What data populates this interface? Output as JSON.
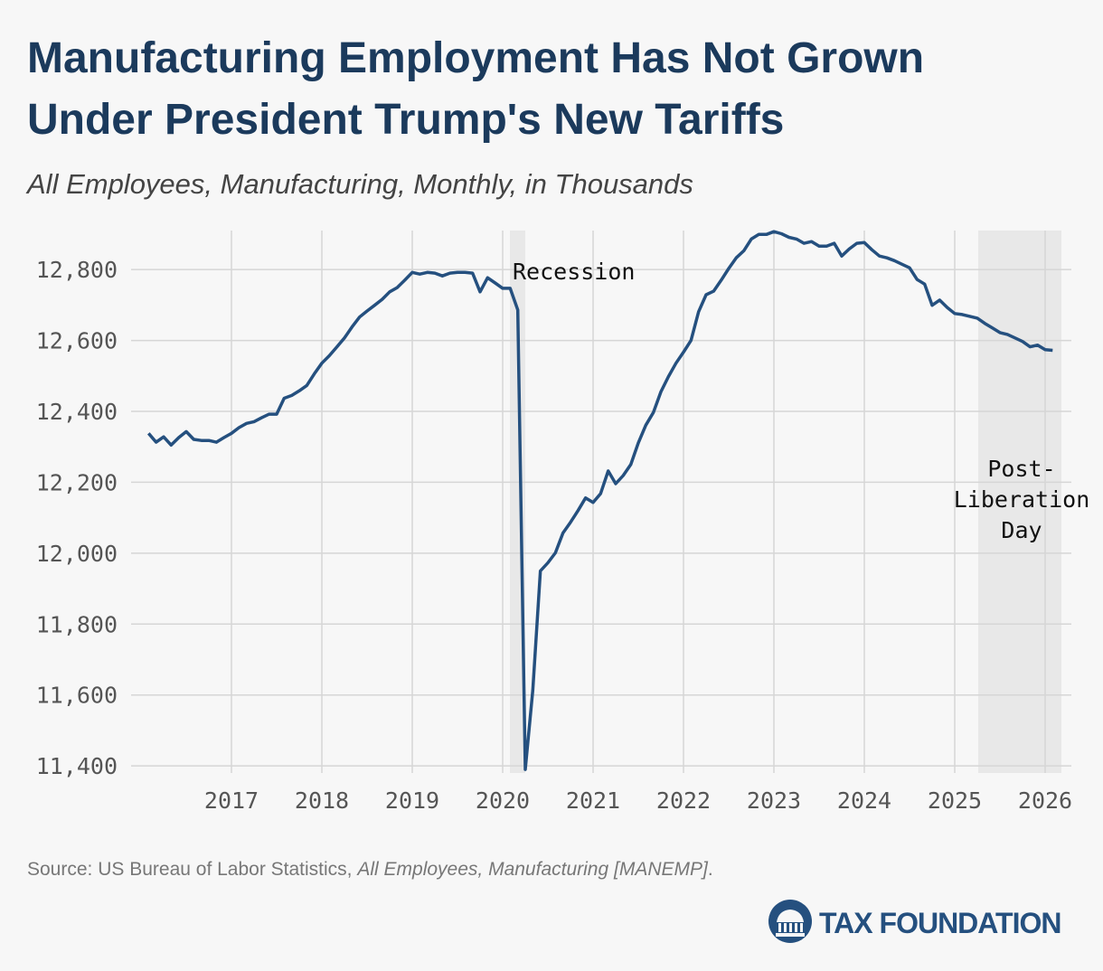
{
  "chart_data": {
    "type": "line",
    "title": [
      "Manufacturing Employment Has Not Grown",
      "Under President Trump's New Tariffs"
    ],
    "subtitle": "All Employees, Manufacturing, Monthly, in Thousands",
    "x": [
      2016.083,
      2016.167,
      2016.25,
      2016.333,
      2016.417,
      2016.5,
      2016.583,
      2016.667,
      2016.75,
      2016.833,
      2016.917,
      2017.0,
      2017.083,
      2017.167,
      2017.25,
      2017.333,
      2017.417,
      2017.5,
      2017.583,
      2017.667,
      2017.75,
      2017.833,
      2017.917,
      2018.0,
      2018.083,
      2018.167,
      2018.25,
      2018.333,
      2018.417,
      2018.5,
      2018.583,
      2018.667,
      2018.75,
      2018.833,
      2018.917,
      2019.0,
      2019.083,
      2019.167,
      2019.25,
      2019.333,
      2019.417,
      2019.5,
      2019.583,
      2019.667,
      2019.75,
      2019.833,
      2019.917,
      2020.0,
      2020.083,
      2020.167,
      2020.25,
      2020.333,
      2020.417,
      2020.5,
      2020.583,
      2020.667,
      2020.75,
      2020.833,
      2020.917,
      2021.0,
      2021.083,
      2021.167,
      2021.25,
      2021.333,
      2021.417,
      2021.5,
      2021.583,
      2021.667,
      2021.75,
      2021.833,
      2021.917,
      2022.0,
      2022.083,
      2022.167,
      2022.25,
      2022.333,
      2022.417,
      2022.5,
      2022.583,
      2022.667,
      2022.75,
      2022.833,
      2022.917,
      2023.0,
      2023.083,
      2023.167,
      2023.25,
      2023.333,
      2023.417,
      2023.5,
      2023.583,
      2023.667,
      2023.75,
      2023.833,
      2023.917,
      2024.0,
      2024.083,
      2024.167,
      2024.25,
      2024.333,
      2024.417,
      2024.5,
      2024.583,
      2024.667,
      2024.75,
      2024.833,
      2024.917,
      2025.0,
      2025.083,
      2025.167,
      2025.25,
      2025.333,
      2025.417,
      2025.5,
      2025.583,
      2025.667,
      2025.75,
      2025.833,
      2025.917,
      2026.0,
      2026.083
    ],
    "values": [
      12338,
      12313,
      12328,
      12305,
      12326,
      12343,
      12321,
      12318,
      12318,
      12313,
      12326,
      12338,
      12354,
      12366,
      12371,
      12382,
      12392,
      12392,
      12437,
      12445,
      12458,
      12473,
      12506,
      12536,
      12557,
      12582,
      12607,
      12638,
      12666,
      12683,
      12699,
      12716,
      12737,
      12749,
      12770,
      12792,
      12787,
      12792,
      12790,
      12782,
      12790,
      12792,
      12792,
      12790,
      12737,
      12777,
      12762,
      12747,
      12747,
      12686,
      11390,
      11613,
      11950,
      11973,
      12001,
      12057,
      12087,
      12120,
      12156,
      12143,
      12168,
      12232,
      12196,
      12219,
      12250,
      12311,
      12361,
      12397,
      12455,
      12498,
      12536,
      12567,
      12600,
      12681,
      12729,
      12739,
      12770,
      12803,
      12833,
      12853,
      12886,
      12899,
      12899,
      12907,
      12901,
      12891,
      12886,
      12874,
      12879,
      12866,
      12866,
      12874,
      12838,
      12858,
      12874,
      12876,
      12856,
      12838,
      12833,
      12825,
      12815,
      12805,
      12772,
      12759,
      12699,
      12714,
      12693,
      12676,
      12673,
      12668,
      12663,
      12648,
      12635,
      12622,
      12617,
      12607,
      12597,
      12582,
      12587,
      12574,
      12572
    ],
    "color": "#25507f",
    "xlim": [
      2015.89,
      2026.29
    ],
    "xticks": [
      2017,
      2018,
      2019,
      2020,
      2021,
      2022,
      2023,
      2024,
      2025,
      2026
    ],
    "ylim": [
      11380,
      12910
    ],
    "yticks": [
      {
        "value": 11400,
        "label": "11,400"
      },
      {
        "value": 11600,
        "label": "11,600"
      },
      {
        "value": 11800,
        "label": "11,800"
      },
      {
        "value": 12000,
        "label": "12,000"
      },
      {
        "value": 12200,
        "label": "12,200"
      },
      {
        "value": 12400,
        "label": "12,400"
      },
      {
        "value": 12600,
        "label": "12,600"
      },
      {
        "value": 12800,
        "label": "12,800"
      }
    ],
    "grid": true,
    "shaded": [
      {
        "label": [
          "Recession"
        ],
        "x": [
          2020.08,
          2020.25
        ]
      },
      {
        "label": [
          "Post-",
          "Liberation",
          "Day"
        ],
        "x": [
          2025.26,
          2026.18
        ]
      }
    ],
    "source": {
      "prefix": "Source: US Bureau of Labor Statistics, ",
      "italic": "All Employees, Manufacturing [MANEMP]",
      "suffix": "."
    },
    "logo": "TAX FOUNDATION"
  }
}
